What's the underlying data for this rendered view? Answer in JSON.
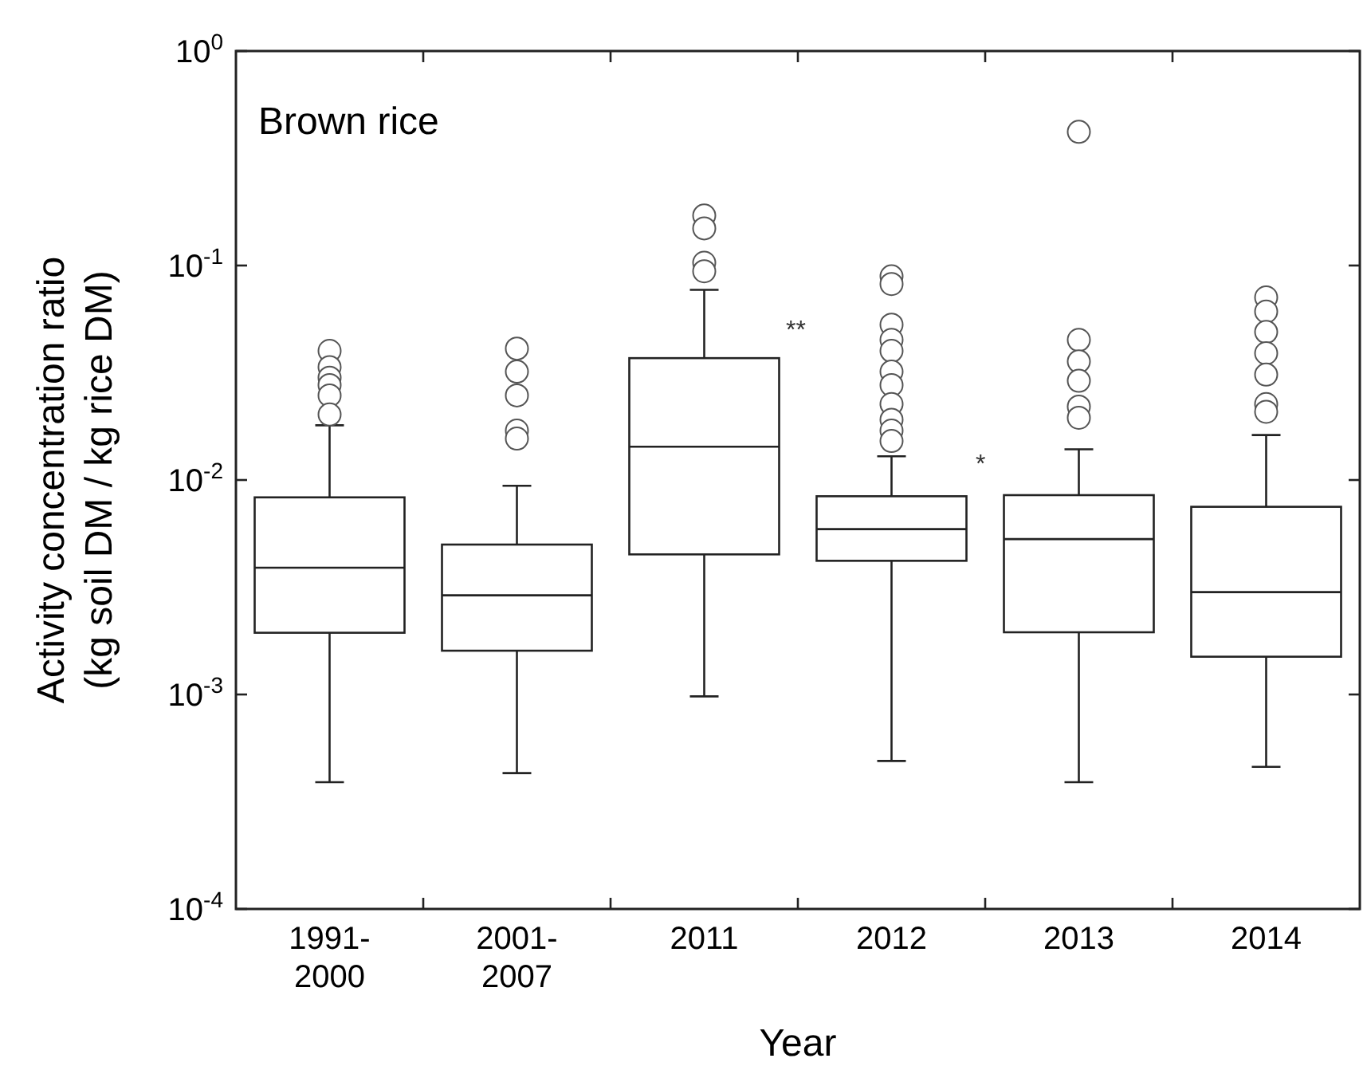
{
  "chart_data": {
    "type": "box",
    "title": "Brown rice",
    "xlabel": "Year",
    "ylabel": "Activity concentration ratio\n(kg soil DM / kg rice DM)",
    "categories": [
      "1991-2000",
      "2001-2007",
      "2011",
      "2012",
      "2013",
      "2014"
    ],
    "log": true,
    "ylim": [
      0.0001,
      1
    ],
    "yticks": [
      {
        "value": 0.0001,
        "label": "10$^{-4}$"
      },
      {
        "value": 0.001,
        "label": "10$^{-3}$"
      },
      {
        "value": 0.01,
        "label": "10$^{-2}$"
      },
      {
        "value": 0.1,
        "label": "10$^{-1}$"
      },
      {
        "value": 1,
        "label": "10$^{0}$"
      }
    ],
    "grid": false,
    "boxes": [
      {
        "low": 0.00039,
        "q1": 0.00194,
        "median": 0.0039,
        "q3": 0.0083,
        "high": 0.018,
        "outliers": [
          0.04,
          0.0336,
          0.03,
          0.0277,
          0.0248,
          0.0202
        ]
      },
      {
        "low": 0.00043,
        "q1": 0.0016,
        "median": 0.0029,
        "q3": 0.005,
        "high": 0.0094,
        "outliers": [
          0.041,
          0.032,
          0.0248,
          0.017,
          0.0156
        ]
      },
      {
        "low": 0.00098,
        "q1": 0.0045,
        "median": 0.0143,
        "q3": 0.037,
        "high": 0.077,
        "outliers": [
          0.171,
          0.149,
          0.103,
          0.094
        ]
      },
      {
        "low": 0.00049,
        "q1": 0.0042,
        "median": 0.0059,
        "q3": 0.0084,
        "high": 0.0129,
        "outliers": [
          0.089,
          0.082,
          0.053,
          0.045,
          0.04,
          0.032,
          0.0277,
          0.0226,
          0.0191,
          0.017,
          0.0152
        ]
      },
      {
        "low": 0.00039,
        "q1": 0.00195,
        "median": 0.0053,
        "q3": 0.0085,
        "high": 0.0139,
        "outliers": [
          0.42,
          0.045,
          0.0357,
          0.029,
          0.022,
          0.0195
        ]
      },
      {
        "low": 0.00046,
        "q1": 0.0015,
        "median": 0.003,
        "q3": 0.0075,
        "high": 0.0162,
        "outliers": [
          0.071,
          0.061,
          0.049,
          0.039,
          0.031,
          0.0226,
          0.0208
        ]
      }
    ],
    "annotations": [
      "**",
      "*"
    ]
  }
}
